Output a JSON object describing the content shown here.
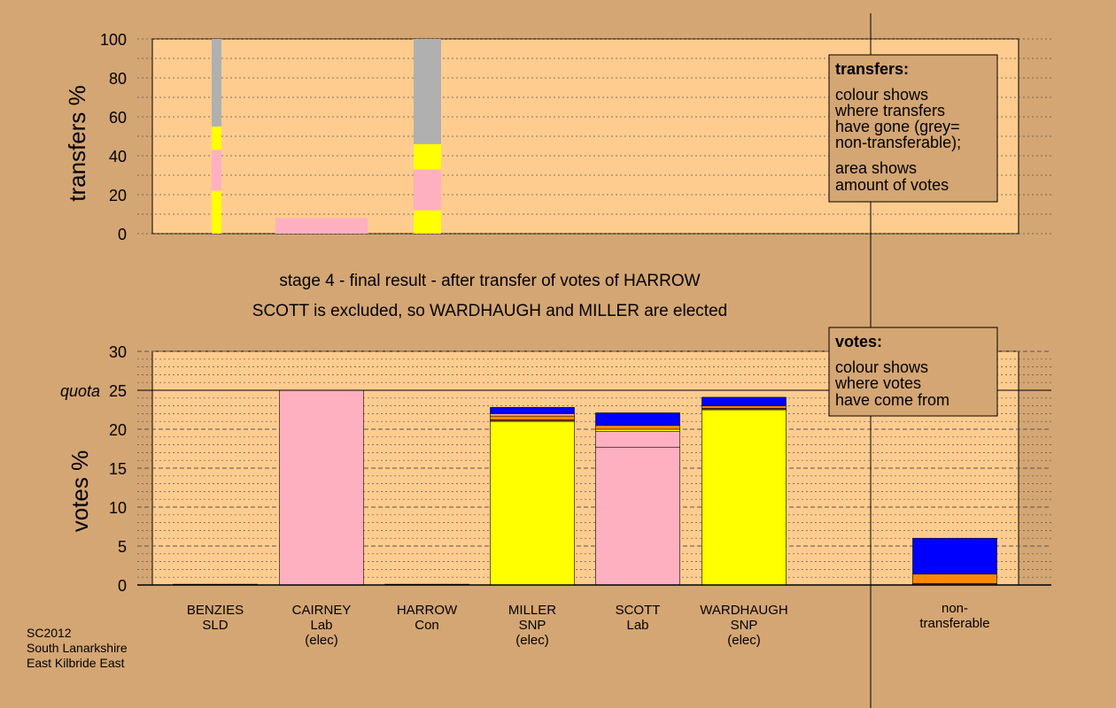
{
  "colors": {
    "page_bg": "#d4a673",
    "plot_bg": "#ffcc8f",
    "yellow": "#ffff00",
    "pink": "#ffb0c0",
    "grey": "#b0b0b0",
    "blue": "#0000ff",
    "orange": "#ff8800",
    "brown": "#8b4513"
  },
  "captions": {
    "line1": "stage 4 - final result - after transfer of votes of HARROW",
    "line2": "SCOTT is excluded, so WARDHAUGH and MILLER are elected"
  },
  "footer": {
    "line1": "SC2012",
    "line2": "South Lanarkshire",
    "line3": "East Kilbride East"
  },
  "chart_data": [
    {
      "type": "bar",
      "stacked": true,
      "ylabel": "transfers %",
      "ylim": [
        0,
        100
      ],
      "yticks": [
        0,
        20,
        40,
        60,
        80,
        100
      ],
      "grid": "dotted",
      "bars": [
        {
          "slot": 0,
          "width": "narrow",
          "segments": [
            {
              "color": "yellow",
              "value": 22
            },
            {
              "color": "pink",
              "value": 21
            },
            {
              "color": "yellow",
              "value": 12
            },
            {
              "color": "grey",
              "value": 45
            }
          ]
        },
        {
          "slot": 1,
          "width": "wide",
          "segments": [
            {
              "color": "pink",
              "value": 8
            }
          ]
        },
        {
          "slot": 2,
          "width": "medium",
          "segments": [
            {
              "color": "yellow",
              "value": 12
            },
            {
              "color": "pink",
              "value": 21
            },
            {
              "color": "yellow",
              "value": 13
            },
            {
              "color": "grey",
              "value": 54
            }
          ]
        }
      ],
      "legend": {
        "title": "transfers:",
        "lines": [
          "colour shows",
          "where transfers",
          "have gone (grey=",
          "non-transferable);"
        ],
        "lines2": [
          "area shows",
          "amount of votes"
        ],
        "placement": "top-right"
      }
    },
    {
      "type": "bar",
      "stacked": true,
      "ylabel": "votes %",
      "ylim": [
        0,
        30
      ],
      "yticks": [
        0,
        5,
        10,
        15,
        20,
        25,
        30
      ],
      "quota": {
        "label": "quota",
        "value": 25
      },
      "grid": "dashed",
      "categories": [
        {
          "lines": [
            "BENZIES",
            "SLD"
          ]
        },
        {
          "lines": [
            "CAIRNEY",
            "Lab",
            "(elec)"
          ]
        },
        {
          "lines": [
            "HARROW",
            "Con"
          ]
        },
        {
          "lines": [
            "MILLER",
            "SNP",
            "(elec)"
          ]
        },
        {
          "lines": [
            "SCOTT",
            "Lab"
          ]
        },
        {
          "lines": [
            "WARDHAUGH",
            "SNP",
            "(elec)"
          ]
        },
        {
          "lines": [
            "non-",
            "transferable"
          ]
        }
      ],
      "bars": [
        {
          "category": 0,
          "segments": [
            {
              "color": "brown",
              "value": 0.1
            }
          ]
        },
        {
          "category": 1,
          "segments": [
            {
              "color": "pink",
              "value": 25
            }
          ]
        },
        {
          "category": 2,
          "segments": [
            {
              "color": "brown",
              "value": 0.1
            }
          ]
        },
        {
          "category": 3,
          "segments": [
            {
              "color": "yellow",
              "value": 21
            },
            {
              "color": "brown",
              "value": 0.2
            },
            {
              "color": "orange",
              "value": 0.5
            },
            {
              "color": "pink",
              "value": 0.3
            },
            {
              "color": "blue",
              "value": 0.8
            }
          ]
        },
        {
          "category": 4,
          "segments": [
            {
              "color": "pink",
              "value": 17.7
            },
            {
              "color": "pink",
              "value": 2.0
            },
            {
              "color": "yellow",
              "value": 0.3
            },
            {
              "color": "orange",
              "value": 0.5
            },
            {
              "color": "blue",
              "value": 1.6
            }
          ]
        },
        {
          "category": 5,
          "segments": [
            {
              "color": "yellow",
              "value": 22.5
            },
            {
              "color": "brown",
              "value": 0.2
            },
            {
              "color": "orange",
              "value": 0.3
            },
            {
              "color": "blue",
              "value": 1.1
            }
          ]
        },
        {
          "category": 6,
          "segments": [
            {
              "color": "brown",
              "value": 0.2
            },
            {
              "color": "orange",
              "value": 1.2
            },
            {
              "color": "blue",
              "value": 4.6
            }
          ]
        }
      ],
      "legend": {
        "title": "votes:",
        "lines": [
          "colour shows",
          "where votes",
          "have come from"
        ],
        "placement": "top-right"
      }
    }
  ]
}
